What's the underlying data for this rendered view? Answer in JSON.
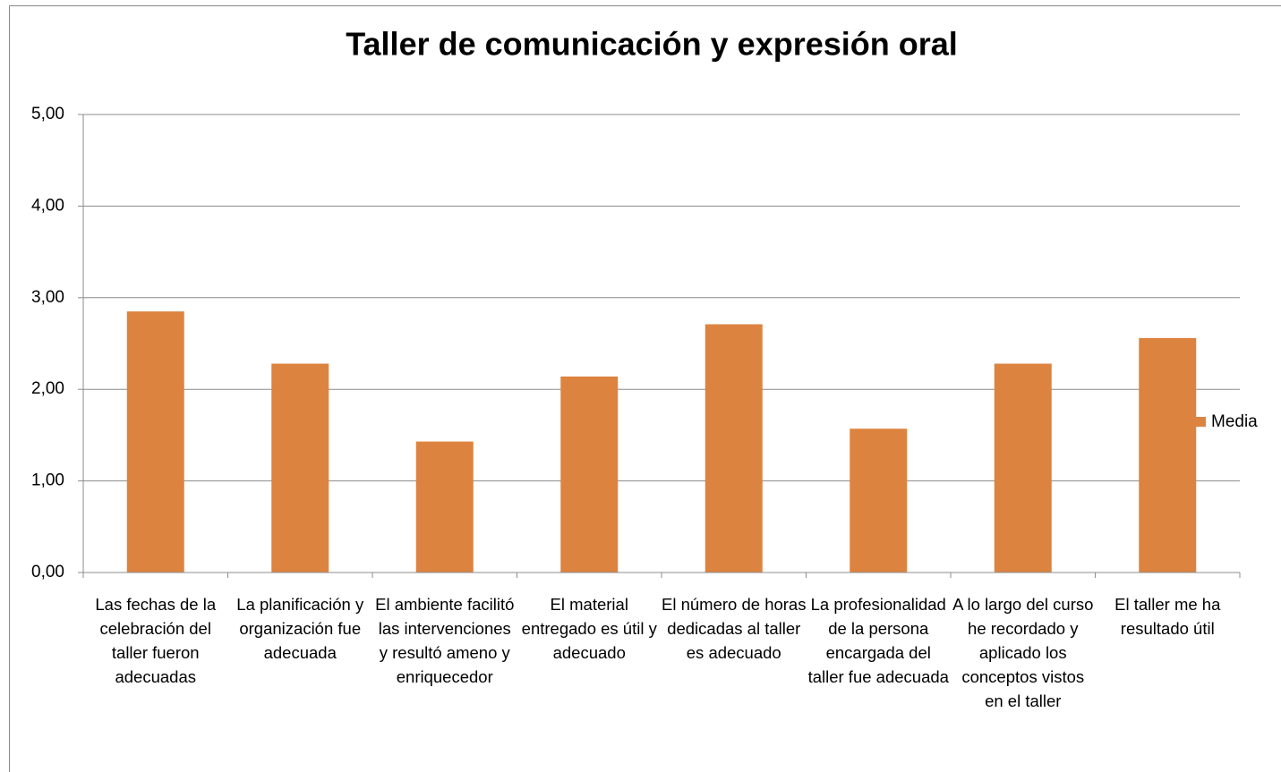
{
  "chart_data": {
    "type": "bar",
    "title": "Taller de comunicación y expresión oral",
    "categories": [
      "Las fechas de la celebración del taller fueron adecuadas",
      "La planificación y organización fue adecuada",
      "El ambiente facilitó las intervenciones y resultó ameno y enriquecedor",
      "El material entregado es útil y adecuado",
      "El número de horas dedicadas al taller es adecuado",
      "La profesionalidad de la persona encargada del taller fue adecuada",
      "A lo largo del curso he recordado y aplicado los conceptos vistos en el taller",
      "El taller me ha resultado útil"
    ],
    "series": [
      {
        "name": "Media",
        "color": "#dd8340",
        "values": [
          2.85,
          2.28,
          1.43,
          2.14,
          2.71,
          1.57,
          2.28,
          2.56
        ]
      }
    ],
    "ylim": [
      0,
      5
    ],
    "yticks": [
      {
        "value": 0,
        "label": "0,00"
      },
      {
        "value": 1,
        "label": "1,00"
      },
      {
        "value": 2,
        "label": "2,00"
      },
      {
        "value": 3,
        "label": "3,00"
      },
      {
        "value": 4,
        "label": "4,00"
      },
      {
        "value": 5,
        "label": "5,00"
      }
    ],
    "grid": true,
    "legend": "right"
  }
}
